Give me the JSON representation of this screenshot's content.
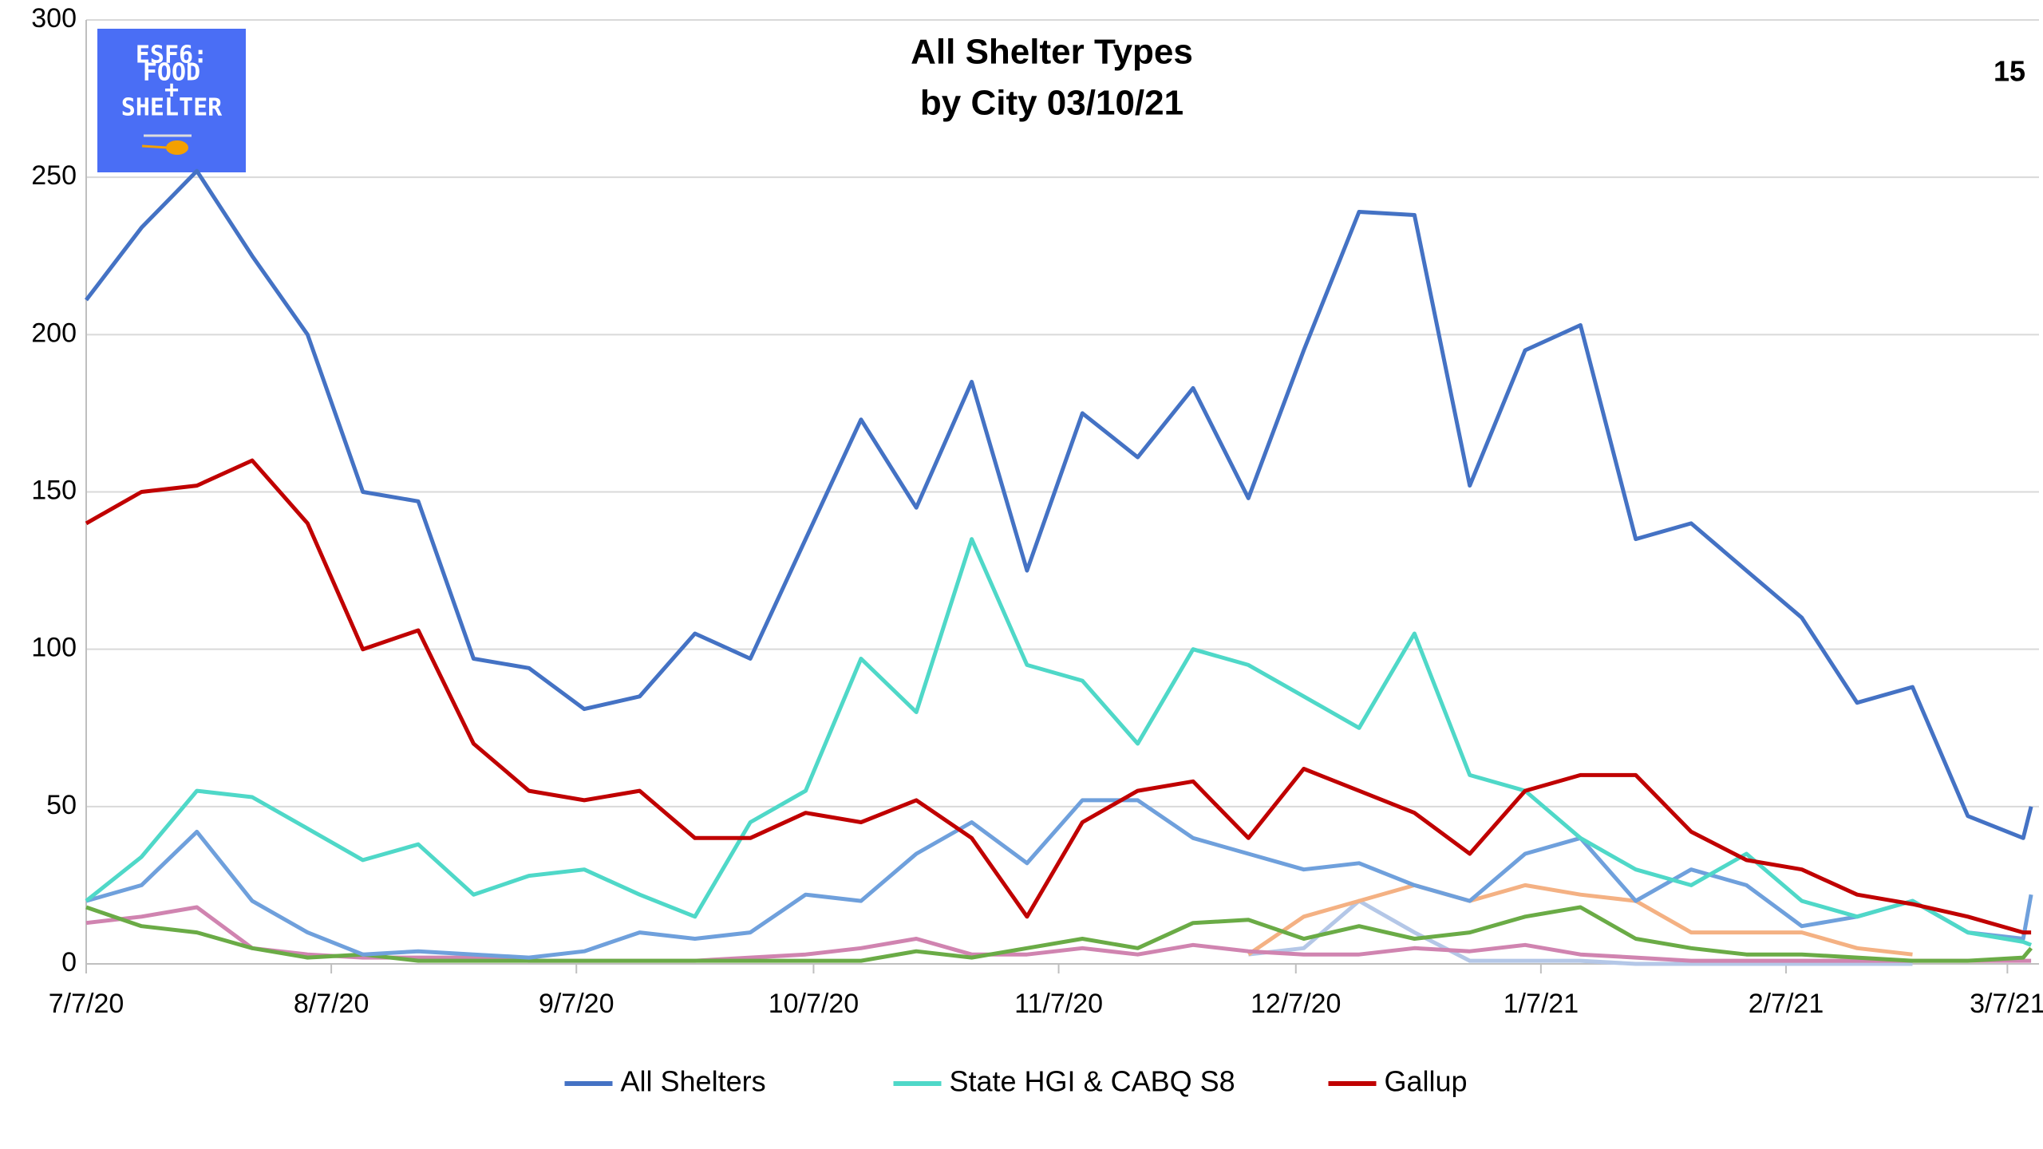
{
  "chart_data": {
    "type": "line",
    "title": "All Shelter Types",
    "subtitle": "by City 03/10/21",
    "annotation": "15",
    "logo_text": [
      "ESF6:",
      "FOOD",
      "+",
      "SHELTER"
    ],
    "x": [
      "7/7/20",
      "7/14/20",
      "7/21/20",
      "7/28/20",
      "8/4/20",
      "8/11/20",
      "8/18/20",
      "8/25/20",
      "9/1/20",
      "9/8/20",
      "9/15/20",
      "9/22/20",
      "9/29/20",
      "10/6/20",
      "10/13/20",
      "10/20/20",
      "10/27/20",
      "11/3/20",
      "11/10/20",
      "11/17/20",
      "11/24/20",
      "12/1/20",
      "12/8/20",
      "12/15/20",
      "12/22/20",
      "12/29/20",
      "1/5/21",
      "1/12/21",
      "1/19/21",
      "1/26/21",
      "2/2/21",
      "2/9/21",
      "2/16/21",
      "2/23/21",
      "3/2/21",
      "3/9/21",
      "3/10/21"
    ],
    "xlim": [
      "7/7/20",
      "3/11/21"
    ],
    "xticks": [
      "7/7/20",
      "8/7/20",
      "9/7/20",
      "10/7/20",
      "11/7/20",
      "12/7/20",
      "1/7/21",
      "2/7/21",
      "3/7/21"
    ],
    "ylim": [
      0,
      300
    ],
    "yticks": [
      0,
      50,
      100,
      150,
      200,
      250,
      300
    ],
    "grid": true,
    "legend": "bottom",
    "series": [
      {
        "color": "#b4c7e7",
        "values": [
          null,
          null,
          null,
          null,
          null,
          null,
          null,
          null,
          null,
          null,
          null,
          null,
          null,
          null,
          null,
          null,
          null,
          null,
          null,
          null,
          null,
          3,
          5,
          20,
          10,
          1,
          1,
          1,
          0,
          0,
          0,
          0,
          0,
          0,
          null,
          null,
          null
        ]
      },
      {
        "color": "#f4b183",
        "values": [
          null,
          null,
          null,
          null,
          null,
          null,
          null,
          null,
          null,
          null,
          null,
          null,
          null,
          null,
          null,
          null,
          null,
          null,
          null,
          null,
          null,
          3,
          15,
          20,
          25,
          20,
          25,
          22,
          20,
          10,
          10,
          10,
          5,
          3,
          null,
          null,
          null
        ]
      },
      {
        "color": "#d084b0",
        "values": [
          13,
          15,
          18,
          5,
          3,
          2,
          2,
          2,
          1,
          1,
          1,
          1,
          2,
          3,
          5,
          8,
          3,
          3,
          5,
          3,
          6,
          4,
          3,
          3,
          5,
          4,
          6,
          3,
          2,
          1,
          1,
          1,
          1,
          1,
          1,
          1,
          1
        ]
      },
      {
        "color": "#6aab46",
        "values": [
          18,
          12,
          10,
          5,
          2,
          3,
          1,
          1,
          1,
          1,
          1,
          1,
          1,
          1,
          1,
          4,
          2,
          5,
          8,
          5,
          13,
          14,
          8,
          12,
          8,
          10,
          15,
          18,
          8,
          5,
          3,
          3,
          2,
          1,
          1,
          2,
          5
        ]
      },
      {
        "color": "#6fa0dc",
        "values": [
          20,
          25,
          42,
          20,
          10,
          3,
          4,
          3,
          2,
          4,
          10,
          8,
          10,
          22,
          20,
          35,
          45,
          32,
          52,
          52,
          40,
          35,
          30,
          32,
          25,
          20,
          35,
          40,
          20,
          30,
          25,
          12,
          15,
          20,
          10,
          8,
          22
        ]
      },
      {
        "name": "All Shelters",
        "color": "#4472c4",
        "values": [
          211,
          234,
          252,
          225,
          200,
          150,
          147,
          97,
          94,
          81,
          85,
          105,
          97,
          135,
          173,
          145,
          185,
          125,
          175,
          161,
          183,
          148,
          195,
          239,
          238,
          152,
          195,
          203,
          135,
          140,
          125,
          110,
          83,
          88,
          47,
          40,
          50
        ]
      },
      {
        "name": "State HGI & CABQ S8",
        "color": "#4fd8c8",
        "values": [
          20,
          34,
          55,
          53,
          43,
          33,
          38,
          22,
          28,
          30,
          22,
          15,
          45,
          55,
          97,
          80,
          135,
          95,
          90,
          70,
          100,
          95,
          85,
          75,
          105,
          60,
          55,
          40,
          30,
          25,
          35,
          20,
          15,
          20,
          10,
          7,
          6
        ]
      },
      {
        "name": "Gallup",
        "color": "#c00000",
        "values": [
          140,
          150,
          152,
          160,
          140,
          100,
          106,
          70,
          55,
          52,
          55,
          40,
          40,
          48,
          45,
          52,
          40,
          15,
          45,
          55,
          58,
          40,
          62,
          55,
          48,
          35,
          55,
          60,
          60,
          42,
          33,
          30,
          22,
          19,
          15,
          10,
          10
        ]
      }
    ]
  }
}
